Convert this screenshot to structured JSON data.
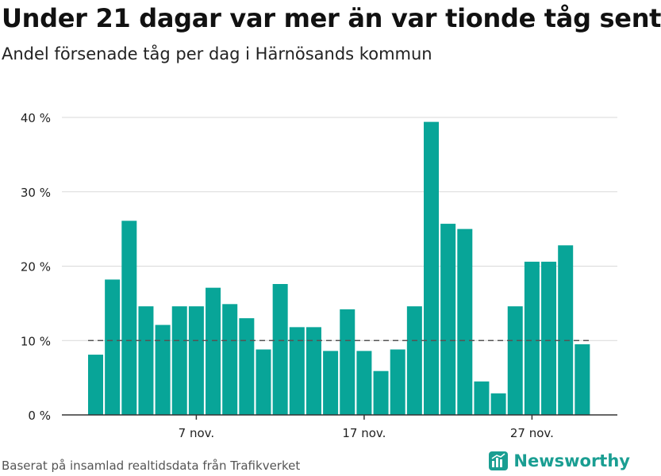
{
  "title": "Under 21 dagar var mer än var tionde tåg sent",
  "subtitle": "Andel försenade tåg per dag i Härnösands kommun",
  "source": "Baserat på insamlad realtidsdata från Trafikverket",
  "brand": "Newsworthy",
  "colors": {
    "bar": "#08a598",
    "brand": "#1a9e92",
    "grid": "#d9d9d9",
    "axis": "#333333",
    "reference": "#555555"
  },
  "chart_data": {
    "type": "bar",
    "x": [
      1,
      2,
      3,
      4,
      5,
      6,
      7,
      8,
      9,
      10,
      11,
      12,
      13,
      14,
      15,
      16,
      17,
      18,
      19,
      20,
      21,
      22,
      23,
      24,
      25,
      26,
      27,
      28,
      29,
      30
    ],
    "values": [
      8.1,
      18.2,
      26.1,
      14.6,
      12.1,
      14.6,
      14.6,
      17.1,
      14.9,
      13.0,
      8.8,
      17.6,
      11.8,
      11.8,
      8.6,
      14.2,
      8.6,
      5.9,
      8.8,
      14.6,
      39.4,
      25.7,
      25.0,
      4.5,
      2.9,
      14.6,
      20.6,
      20.6,
      22.8,
      9.5
    ],
    "ylim": [
      0,
      40
    ],
    "yticks": [
      0,
      10,
      20,
      30,
      40
    ],
    "ytick_labels": [
      "0 %",
      "10 %",
      "20 %",
      "30 %",
      "40 %"
    ],
    "xticks": [
      7,
      17,
      27
    ],
    "xtick_labels": [
      "7 nov.",
      "17 nov.",
      "27 nov."
    ],
    "reference_line": 10,
    "grid": true
  }
}
